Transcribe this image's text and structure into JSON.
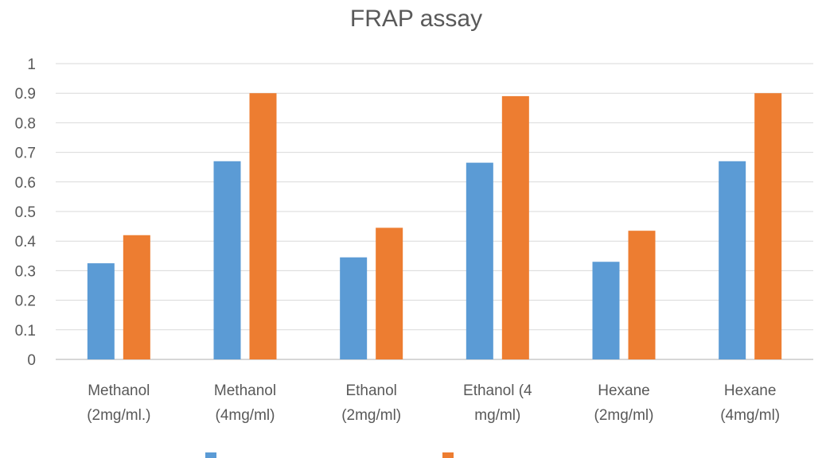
{
  "chart_data": {
    "type": "bar",
    "title": "FRAP assay",
    "xlabel": "",
    "ylabel": "",
    "ylim": [
      0,
      1
    ],
    "yticks": [
      "0",
      "0.1",
      "0.2",
      "0.3",
      "0.4",
      "0.5",
      "0.6",
      "0.7",
      "0.8",
      "0.9",
      "1"
    ],
    "categories": [
      [
        "Methanol",
        "(2mg/ml.)"
      ],
      [
        "Methanol",
        "(4mg/ml)"
      ],
      [
        "Ethanol",
        "(2mg/ml)"
      ],
      [
        "Ethanol    (4",
        "mg/ml)"
      ],
      [
        "Hexane",
        "(2mg/ml)"
      ],
      [
        "Hexane",
        "(4mg/ml)"
      ]
    ],
    "series": [
      {
        "color": "#5b9bd5",
        "values": [
          0.325,
          0.67,
          0.345,
          0.665,
          0.33,
          0.67
        ]
      },
      {
        "color": "#ed7d31",
        "values": [
          0.42,
          0.9,
          0.445,
          0.89,
          0.435,
          0.9
        ]
      }
    ],
    "grid": true,
    "legend": "bottom"
  }
}
